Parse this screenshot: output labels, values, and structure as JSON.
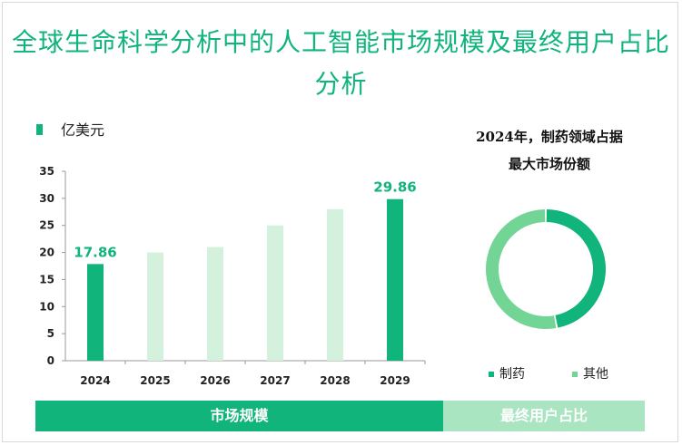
{
  "title": "全球生命科学分析中的人工智能市场规模及最终用户占比分析",
  "colors": {
    "primary": "#11b47a",
    "light_bar": "#d3f1dd",
    "light_slice": "#72d596",
    "tab_light": "#a9e5c1"
  },
  "legend": {
    "unit_label": "亿美元"
  },
  "bottom_bar": {
    "left_label": "市场规模",
    "right_label": "最终用户占比"
  },
  "chart_data": [
    {
      "type": "bar",
      "categories": [
        "2024",
        "2025",
        "2026",
        "2027",
        "2028",
        "2029"
      ],
      "values": [
        17.86,
        20,
        21,
        25,
        28,
        29.86
      ],
      "data_labels": [
        "17.86",
        "",
        "",
        "",
        "",
        "29.86"
      ],
      "highlighted": [
        true,
        false,
        false,
        false,
        false,
        true
      ],
      "ylim": [
        0,
        35
      ],
      "yticks": [
        "0",
        "5",
        "10",
        "15",
        "20",
        "25",
        "30",
        "35"
      ],
      "ytick_values": [
        0,
        5,
        10,
        15,
        20,
        25,
        30,
        35
      ],
      "grid": false
    },
    {
      "type": "pie",
      "title": "2024年，制药领域占据最大市场份额",
      "title_lines": [
        "2024年，制药领域占据",
        "最大市场份额"
      ],
      "labels": [
        "制药",
        "其他"
      ],
      "values": [
        47,
        53
      ],
      "donut": true
    }
  ]
}
